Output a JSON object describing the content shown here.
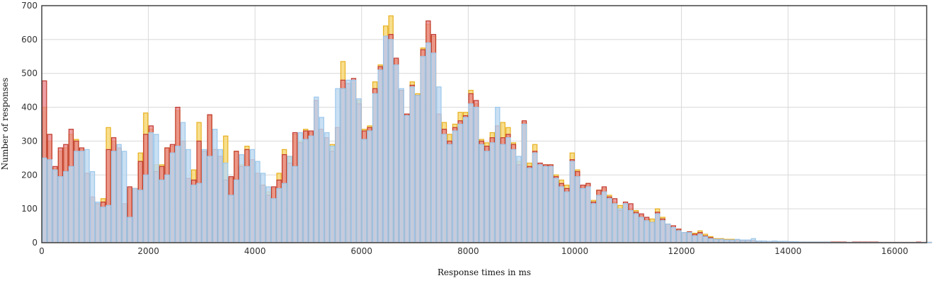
{
  "chart_data": {
    "type": "bar",
    "xlabel": "Response times in ms",
    "ylabel": "Number of responses",
    "xlim": [
      0,
      16600
    ],
    "ylim": [
      0,
      700
    ],
    "x_ticks": [
      0,
      2000,
      4000,
      6000,
      8000,
      10000,
      12000,
      14000,
      16000
    ],
    "y_ticks": [
      0,
      100,
      200,
      300,
      400,
      500,
      600,
      700
    ],
    "grid": true,
    "bin_width": 100,
    "series_order_back_to_front": [
      "yellow",
      "red",
      "blue"
    ],
    "colors": {
      "red_fill": "#e77f86",
      "red_stroke": "#c0392b",
      "yellow_fill": "#f7d878",
      "yellow_stroke": "#e8b020",
      "blue_fill": "#bdd8f0",
      "blue_stroke": "#9cc8ec",
      "overlap_fill": "#c8b4c8",
      "grid": "#d8d8d8",
      "frame": "#444444"
    },
    "series": [
      {
        "key": "red",
        "values": [
          478,
          320,
          225,
          280,
          290,
          335,
          300,
          280,
          205,
          135,
          115,
          120,
          275,
          310,
          280,
          115,
          165,
          160,
          240,
          320,
          345,
          210,
          225,
          280,
          290,
          400,
          300,
          190,
          185,
          300,
          270,
          378,
          275,
          255,
          185,
          195,
          270,
          225,
          275,
          245,
          205,
          170,
          140,
          165,
          185,
          260,
          235,
          325,
          295,
          330,
          330,
          420,
          335,
          310,
          270,
          340,
          480,
          470,
          485,
          410,
          330,
          340,
          455,
          520,
          610,
          615,
          545,
          450,
          380,
          465,
          435,
          570,
          655,
          615,
          380,
          335,
          300,
          340,
          360,
          375,
          440,
          420,
          300,
          285,
          310,
          345,
          310,
          320,
          290,
          230,
          360,
          225,
          270,
          235,
          230,
          230,
          195,
          175,
          160,
          245,
          210,
          170,
          175,
          120,
          155,
          165,
          135,
          130,
          95,
          120,
          115,
          90,
          85,
          75,
          60,
          90,
          70,
          55,
          50,
          40,
          30,
          32,
          25,
          30,
          20,
          15,
          10,
          10,
          8,
          8,
          8,
          6,
          6,
          6,
          5,
          5,
          4,
          4,
          3,
          4,
          3,
          2,
          2,
          2,
          2,
          2,
          2,
          2,
          2,
          2,
          2,
          1,
          2,
          2,
          2,
          2,
          2,
          1,
          1,
          1,
          1,
          1,
          1,
          1,
          2,
          1,
          1
        ]
      },
      {
        "key": "yellow",
        "values": [
          400,
          300,
          220,
          270,
          280,
          320,
          305,
          275,
          205,
          130,
          115,
          130,
          340,
          300,
          275,
          110,
          160,
          160,
          265,
          383,
          335,
          230,
          230,
          280,
          285,
          390,
          300,
          185,
          215,
          355,
          270,
          375,
          275,
          250,
          315,
          190,
          270,
          230,
          285,
          240,
          200,
          170,
          150,
          160,
          205,
          275,
          255,
          320,
          300,
          335,
          325,
          420,
          330,
          310,
          290,
          340,
          535,
          455,
          475,
          420,
          335,
          345,
          475,
          525,
          640,
          670,
          540,
          450,
          380,
          475,
          440,
          575,
          645,
          610,
          375,
          355,
          320,
          350,
          385,
          385,
          450,
          410,
          305,
          295,
          325,
          345,
          355,
          340,
          295,
          240,
          355,
          235,
          290,
          230,
          230,
          230,
          200,
          185,
          170,
          265,
          215,
          165,
          175,
          125,
          155,
          160,
          140,
          120,
          110,
          115,
          100,
          95,
          80,
          70,
          70,
          100,
          75,
          55,
          45,
          40,
          30,
          32,
          28,
          35,
          25,
          18,
          12,
          12,
          10,
          10,
          8,
          7,
          7,
          6,
          5,
          5,
          4,
          4,
          4,
          4,
          3,
          2,
          2,
          2,
          2,
          2,
          2,
          2,
          2,
          2,
          1,
          1,
          1,
          1,
          1,
          1,
          1,
          1,
          1,
          1,
          1,
          1,
          1,
          1,
          1,
          1,
          1
        ]
      },
      {
        "key": "blue",
        "values": [
          250,
          245,
          215,
          195,
          210,
          225,
          270,
          270,
          275,
          210,
          120,
          105,
          110,
          270,
          290,
          270,
          75,
          160,
          155,
          200,
          325,
          320,
          185,
          200,
          265,
          285,
          355,
          275,
          170,
          175,
          275,
          255,
          335,
          275,
          235,
          140,
          185,
          260,
          225,
          275,
          240,
          205,
          165,
          130,
          160,
          175,
          255,
          225,
          325,
          305,
          315,
          430,
          370,
          325,
          285,
          455,
          455,
          480,
          480,
          425,
          305,
          330,
          440,
          510,
          610,
          600,
          525,
          455,
          375,
          460,
          435,
          550,
          590,
          560,
          460,
          320,
          290,
          330,
          350,
          370,
          410,
          400,
          290,
          270,
          295,
          400,
          290,
          310,
          275,
          255,
          350,
          220,
          265,
          230,
          225,
          225,
          190,
          165,
          150,
          240,
          195,
          160,
          165,
          115,
          140,
          150,
          130,
          115,
          100,
          115,
          95,
          85,
          75,
          65,
          60,
          85,
          65,
          55,
          45,
          35,
          30,
          30,
          20,
          25,
          18,
          12,
          10,
          10,
          8,
          8,
          10,
          8,
          8,
          12,
          5,
          5,
          4,
          5,
          4,
          4,
          3,
          3,
          2,
          2,
          2,
          2,
          2,
          2,
          1,
          1,
          1,
          1,
          1,
          1,
          1,
          1,
          1,
          1,
          1,
          1,
          1,
          1,
          1,
          1,
          1,
          1,
          1
        ]
      }
    ]
  }
}
